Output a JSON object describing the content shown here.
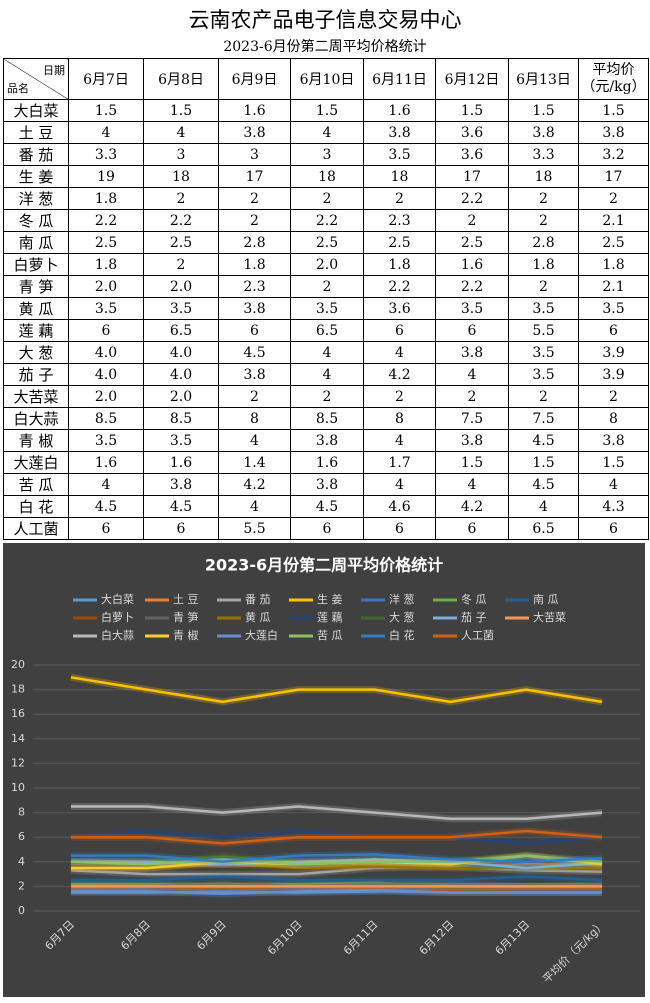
{
  "header": {
    "title": "云南农产品电子信息交易中心",
    "subtitle": "2023-6月份第二周平均价格统计"
  },
  "table": {
    "corner_top": "日期",
    "corner_bottom": "品名",
    "columns": [
      "6月7日",
      "6月8日",
      "6月9日",
      "6月10日",
      "6月11日",
      "6月12日",
      "6月13日"
    ],
    "avg_header": [
      "平均价",
      "（元/kg）"
    ],
    "rows": [
      [
        "大白菜",
        "1.5",
        "1.5",
        "1.6",
        "1.5",
        "1.6",
        "1.5",
        "1.5",
        "1.5"
      ],
      [
        "土 豆",
        "4",
        "4",
        "3.8",
        "4",
        "3.8",
        "3.6",
        "3.8",
        "3.8"
      ],
      [
        "番 茄",
        "3.3",
        "3",
        "3",
        "3",
        "3.5",
        "3.6",
        "3.3",
        "3.2"
      ],
      [
        "生 姜",
        "19",
        "18",
        "17",
        "18",
        "18",
        "17",
        "18",
        "17"
      ],
      [
        "洋 葱",
        "1.8",
        "2",
        "2",
        "2",
        "2",
        "2.2",
        "2",
        "2"
      ],
      [
        "冬 瓜",
        "2.2",
        "2.2",
        "2",
        "2.2",
        "2.3",
        "2",
        "2",
        "2.1"
      ],
      [
        "南 瓜",
        "2.5",
        "2.5",
        "2.8",
        "2.5",
        "2.5",
        "2.5",
        "2.8",
        "2.5"
      ],
      [
        "白萝卜",
        "1.8",
        "2",
        "1.8",
        "2.0",
        "1.8",
        "1.6",
        "1.8",
        "1.8"
      ],
      [
        "青 笋",
        "2.0",
        "2.0",
        "2.3",
        "2",
        "2.2",
        "2.2",
        "2",
        "2.1"
      ],
      [
        "黄 瓜",
        "3.5",
        "3.5",
        "3.8",
        "3.5",
        "3.6",
        "3.5",
        "3.5",
        "3.5"
      ],
      [
        "莲 藕",
        "6",
        "6.5",
        "6",
        "6.5",
        "6",
        "6",
        "5.5",
        "6"
      ],
      [
        "大 葱",
        "4.0",
        "4.0",
        "4.5",
        "4",
        "4",
        "3.8",
        "3.5",
        "3.9"
      ],
      [
        "茄 子",
        "4.0",
        "4.0",
        "3.8",
        "4",
        "4.2",
        "4",
        "3.5",
        "3.9"
      ],
      [
        "大苦菜",
        "2.0",
        "2.0",
        "2",
        "2",
        "2",
        "2",
        "2",
        "2"
      ],
      [
        "白大蒜",
        "8.5",
        "8.5",
        "8",
        "8.5",
        "8",
        "7.5",
        "7.5",
        "8"
      ],
      [
        "青 椒",
        "3.5",
        "3.5",
        "4",
        "3.8",
        "4",
        "3.8",
        "4.5",
        "3.8"
      ],
      [
        "大莲白",
        "1.6",
        "1.6",
        "1.4",
        "1.6",
        "1.7",
        "1.5",
        "1.5",
        "1.5"
      ],
      [
        "苦 瓜",
        "4",
        "3.8",
        "4.2",
        "3.8",
        "4",
        "4",
        "4.5",
        "4"
      ],
      [
        "白 花",
        "4.5",
        "4.5",
        "4",
        "4.5",
        "4.6",
        "4.2",
        "4",
        "4.3"
      ],
      [
        "人工菌",
        "6",
        "6",
        "5.5",
        "6",
        "6",
        "6",
        "6.5",
        "6"
      ]
    ]
  },
  "chart_data": {
    "type": "line",
    "title": "2023-6月份第二周平均价格统计",
    "categories": [
      "6月7日",
      "6月8日",
      "6月9日",
      "6月10日",
      "6月11日",
      "6月12日",
      "6月13日",
      "平均价（元/kg）"
    ],
    "ylim": [
      0,
      20
    ],
    "yticks": [
      0,
      2,
      4,
      6,
      8,
      10,
      12,
      14,
      16,
      18,
      20
    ],
    "grid": true,
    "legend": "top",
    "series": [
      {
        "name": "大白菜",
        "color": "#5B9BD5",
        "values": [
          1.5,
          1.5,
          1.6,
          1.5,
          1.6,
          1.5,
          1.5,
          1.5
        ]
      },
      {
        "name": "土 豆",
        "color": "#ED7D31",
        "values": [
          4,
          4,
          3.8,
          4,
          3.8,
          3.6,
          3.8,
          3.8
        ]
      },
      {
        "name": "番 茄",
        "color": "#A5A5A5",
        "values": [
          3.3,
          3,
          3,
          3,
          3.5,
          3.6,
          3.3,
          3.2
        ]
      },
      {
        "name": "生 姜",
        "color": "#FFC000",
        "values": [
          19,
          18,
          17,
          18,
          18,
          17,
          18,
          17
        ]
      },
      {
        "name": "洋 葱",
        "color": "#4472C4",
        "values": [
          1.8,
          2,
          2,
          2,
          2,
          2.2,
          2,
          2
        ]
      },
      {
        "name": "冬 瓜",
        "color": "#70AD47",
        "values": [
          2.2,
          2.2,
          2,
          2.2,
          2.3,
          2,
          2,
          2.1
        ]
      },
      {
        "name": "南 瓜",
        "color": "#255E91",
        "values": [
          2.5,
          2.5,
          2.8,
          2.5,
          2.5,
          2.5,
          2.8,
          2.5
        ]
      },
      {
        "name": "白萝卜",
        "color": "#9E480E",
        "values": [
          1.8,
          2,
          1.8,
          2,
          1.8,
          1.6,
          1.8,
          1.8
        ]
      },
      {
        "name": "青 笋",
        "color": "#636363",
        "values": [
          2,
          2,
          2.3,
          2,
          2.2,
          2.2,
          2,
          2.1
        ]
      },
      {
        "name": "黄 瓜",
        "color": "#997300",
        "values": [
          3.5,
          3.5,
          3.8,
          3.5,
          3.6,
          3.5,
          3.5,
          3.5
        ]
      },
      {
        "name": "莲 藕",
        "color": "#264478",
        "values": [
          6,
          6.5,
          6,
          6.5,
          6,
          6,
          5.5,
          6
        ]
      },
      {
        "name": "大 葱",
        "color": "#43682B",
        "values": [
          4,
          4,
          4.5,
          4,
          4,
          3.8,
          3.5,
          3.9
        ]
      },
      {
        "name": "茄 子",
        "color": "#7CAFDD",
        "values": [
          4,
          4,
          3.8,
          4,
          4.2,
          4,
          3.5,
          3.9
        ]
      },
      {
        "name": "大苦菜",
        "color": "#F1975A",
        "values": [
          2,
          2,
          2,
          2,
          2,
          2,
          2,
          2
        ]
      },
      {
        "name": "白大蒜",
        "color": "#B7B7B7",
        "values": [
          8.5,
          8.5,
          8,
          8.5,
          8,
          7.5,
          7.5,
          8
        ]
      },
      {
        "name": "青 椒",
        "color": "#FFCD33",
        "values": [
          3.5,
          3.5,
          4,
          3.8,
          4,
          3.8,
          4.5,
          3.8
        ]
      },
      {
        "name": "大莲白",
        "color": "#698ED0",
        "values": [
          1.6,
          1.6,
          1.4,
          1.6,
          1.7,
          1.5,
          1.5,
          1.5
        ]
      },
      {
        "name": "苦 瓜",
        "color": "#8CC168",
        "values": [
          4,
          3.8,
          4.2,
          3.8,
          4,
          4,
          4.5,
          4
        ]
      },
      {
        "name": "白 花",
        "color": "#327DC2",
        "values": [
          4.5,
          4.5,
          4,
          4.5,
          4.6,
          4.2,
          4,
          4.3
        ]
      },
      {
        "name": "人工菌",
        "color": "#D26012",
        "values": [
          6,
          6,
          5.5,
          6,
          6,
          6,
          6.5,
          6
        ]
      }
    ]
  }
}
